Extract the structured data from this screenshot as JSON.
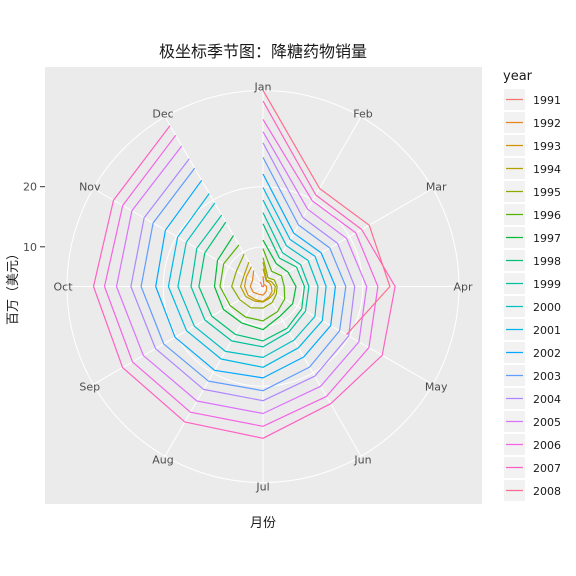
{
  "chart_data": {
    "type": "line",
    "coord": "polar",
    "title": "极坐标季节图：降糖药物销量",
    "xlabel": "月份",
    "ylabel": "百万（美元）",
    "theta_labels": [
      "Jan",
      "Feb",
      "Mar",
      "Apr",
      "May",
      "Jun",
      "Jul",
      "Aug",
      "Sep",
      "Oct",
      "Nov",
      "Dec"
    ],
    "r_ticks": [
      10,
      20
    ],
    "rlim": [
      3.4,
      36
    ],
    "grid": true,
    "legend": {
      "title": "year",
      "position": "right"
    },
    "series": [
      {
        "name": "1991",
        "color": "#F8766D",
        "values": [
          null,
          null,
          null,
          null,
          null,
          null,
          3.53,
          3.18,
          3.25,
          3.61,
          3.57,
          4.31
        ]
      },
      {
        "name": "1992",
        "color": "#E7851E",
        "values": [
          5.09,
          3.7,
          3.87,
          3.96,
          4.11,
          4.4,
          4.83,
          4.88,
          5.29,
          5.51,
          5.42,
          6.49
        ]
      },
      {
        "name": "1993",
        "color": "#D09400",
        "values": [
          6.37,
          4.45,
          4.64,
          4.8,
          5.12,
          5.39,
          5.87,
          5.94,
          6.28,
          6.46,
          6.6,
          7.22
        ]
      },
      {
        "name": "1994",
        "color": "#B2A100",
        "values": [
          7.48,
          4.61,
          5.03,
          5.45,
          5.56,
          5.62,
          5.97,
          6.2,
          6.72,
          7.12,
          7.05,
          8.09
        ]
      },
      {
        "name": "1995",
        "color": "#8BAB00",
        "values": [
          8.21,
          5.07,
          5.58,
          5.74,
          5.96,
          6.47,
          6.99,
          7.48,
          7.84,
          8.6,
          8.51,
          9.66
        ]
      },
      {
        "name": "1996",
        "color": "#53B400",
        "values": [
          9.7,
          6.31,
          6.96,
          6.93,
          7.56,
          8.22,
          9.12,
          9.26,
          9.72,
          10.55,
          10.95,
          11.38
        ]
      },
      {
        "name": "1997",
        "color": "#00BA38",
        "values": [
          11.11,
          7.79,
          8.2,
          8.89,
          9.11,
          9.08,
          10.57,
          10.43,
          11.01,
          11.46,
          12.13,
          13.21
        ]
      },
      {
        "name": "1998",
        "color": "#00BF74",
        "values": [
          13.84,
          8.86,
          9.85,
          10.28,
          10.84,
          11.42,
          12.44,
          12.6,
          13.26,
          14.06,
          14.58,
          15.79
        ]
      },
      {
        "name": "1999",
        "color": "#00C19F",
        "values": [
          15.69,
          9.9,
          10.64,
          11.04,
          11.57,
          12.09,
          13.44,
          13.85,
          14.56,
          15.38,
          16.11,
          17.13
        ]
      },
      {
        "name": "2000",
        "color": "#00BFC4",
        "values": [
          17.79,
          11.21,
          12.06,
          12.55,
          13.37,
          13.7,
          15.2,
          15.86,
          16.59,
          17.55,
          18.14,
          19.44
        ]
      },
      {
        "name": "2001",
        "color": "#00B8E7",
        "values": [
          19.87,
          12.43,
          13.4,
          13.9,
          14.78,
          15.17,
          16.84,
          17.33,
          18.1,
          19.13,
          19.81,
          21.27
        ]
      },
      {
        "name": "2002",
        "color": "#00A9FF",
        "values": [
          22.12,
          13.63,
          14.58,
          15.45,
          16.41,
          16.94,
          18.61,
          19.49,
          20.29,
          21.24,
          22.14,
          23.8
        ]
      },
      {
        "name": "2003",
        "color": "#619CFF",
        "values": [
          24.88,
          15.21,
          16.22,
          17.17,
          18.11,
          18.88,
          20.73,
          21.56,
          22.48,
          23.68,
          24.51,
          26.13
        ]
      },
      {
        "name": "2004",
        "color": "#AE87FF",
        "values": [
          27.3,
          16.65,
          17.73,
          18.66,
          19.85,
          20.62,
          22.4,
          23.17,
          24.05,
          25.38,
          26.23,
          27.93
        ]
      },
      {
        "name": "2005",
        "color": "#DB72FB",
        "values": [
          29.14,
          18.24,
          19.43,
          20.64,
          21.82,
          22.56,
          24.53,
          25.39,
          26.37,
          27.77,
          28.57,
          30.4
        ]
      },
      {
        "name": "2006",
        "color": "#F564E3",
        "values": [
          31.19,
          19.84,
          21.22,
          22.51,
          23.74,
          24.51,
          26.65,
          27.55,
          28.47,
          29.76,
          30.34,
          32.43
        ]
      },
      {
        "name": "2007",
        "color": "#FF61C3",
        "values": [
          34.26,
          20.98,
          22.36,
          25.37,
          26.3,
          25.91,
          28.65,
          29.4,
          30.37,
          31.6,
          32.12,
          34.31
        ]
      },
      {
        "name": "2008",
        "color": "#FF6C91",
        "values": [
          36.04,
          22.23,
          23.8,
          24.51,
          19.43,
          null,
          null,
          null,
          null,
          null,
          null,
          null
        ]
      }
    ]
  }
}
